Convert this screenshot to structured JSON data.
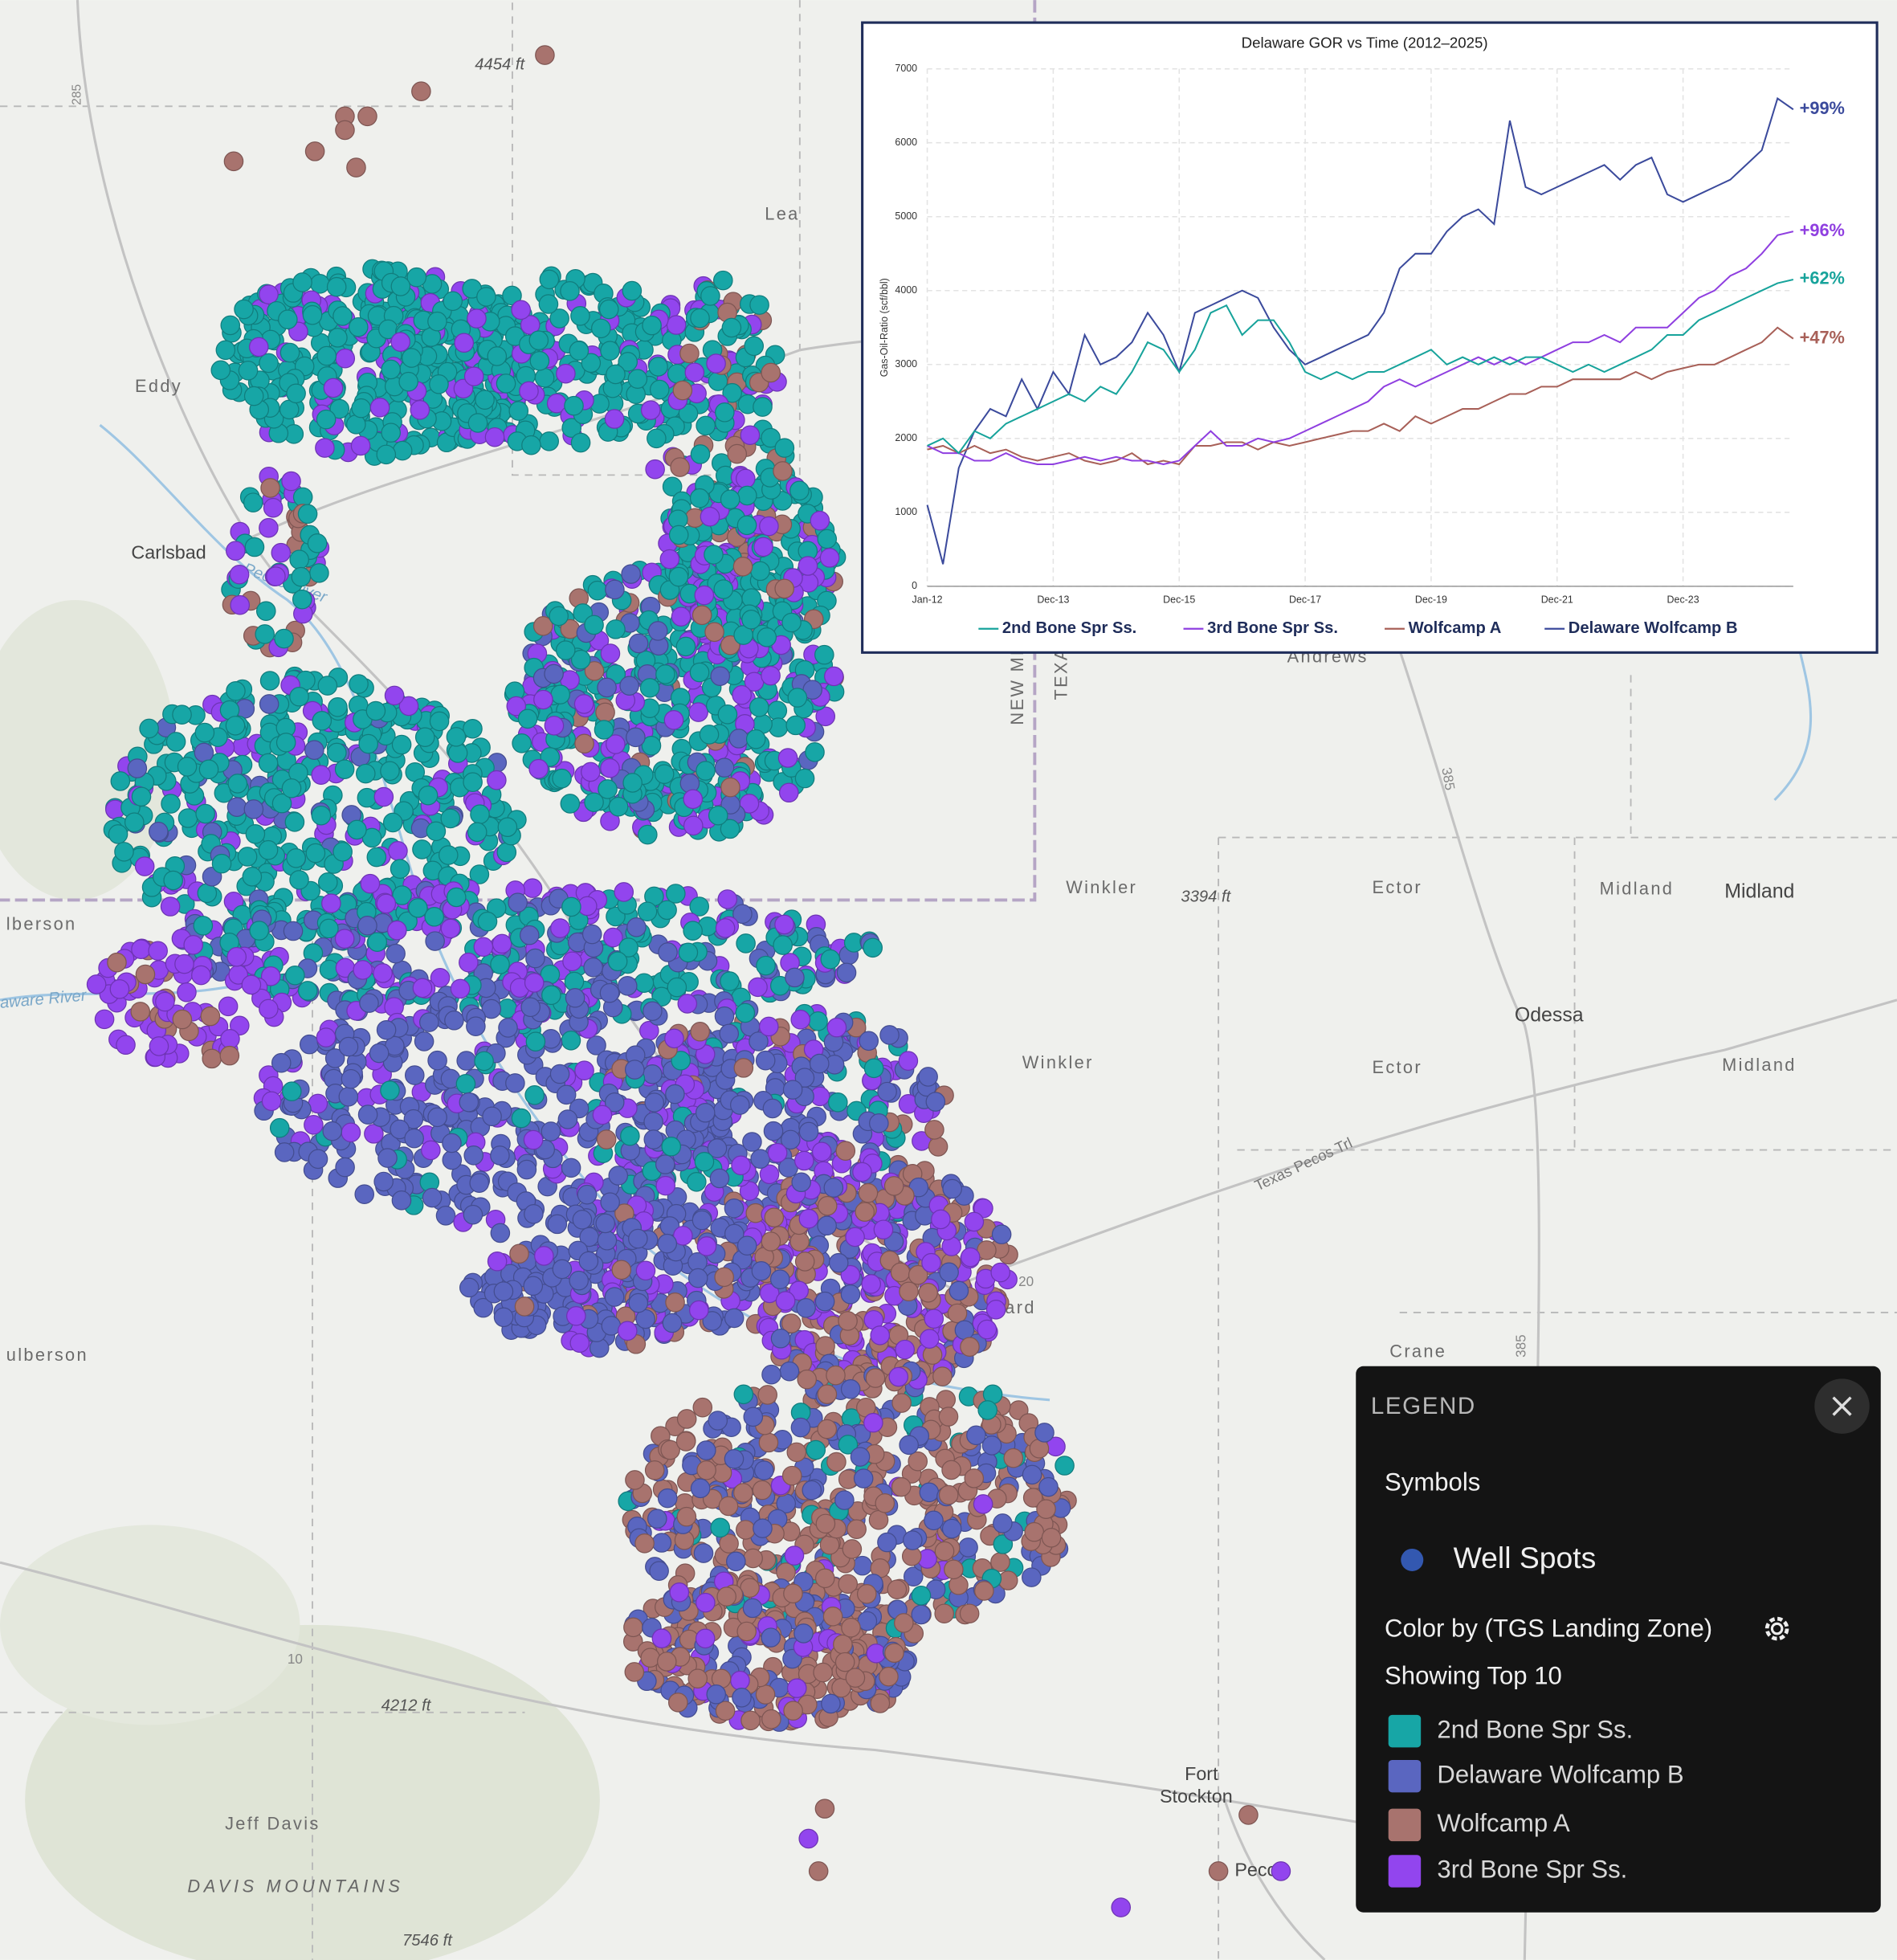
{
  "chart_data": {
    "type": "line",
    "title": "Delaware GOR vs Time (2012–2025)",
    "y_label": "Gas-Oil-Ratio (scf/bbl)",
    "x": [
      "Jan-12",
      "Mar-12",
      "Jun-12",
      "Sep-12",
      "Dec-12",
      "Mar-13",
      "Jun-13",
      "Sep-13",
      "Dec-13",
      "Mar-14",
      "Jun-14",
      "Sep-14",
      "Dec-14",
      "Mar-15",
      "Jun-15",
      "Sep-15",
      "Dec-15",
      "Mar-16",
      "Jun-16",
      "Sep-16",
      "Dec-16",
      "Mar-17",
      "Jun-17",
      "Sep-17",
      "Dec-17",
      "Mar-18",
      "Jun-18",
      "Sep-18",
      "Dec-18",
      "Mar-19",
      "Jun-19",
      "Sep-19",
      "Dec-19",
      "Mar-20",
      "Jun-20",
      "Sep-20",
      "Dec-20",
      "Mar-21",
      "Jun-21",
      "Sep-21",
      "Dec-21",
      "Mar-22",
      "Jun-22",
      "Sep-22",
      "Dec-22",
      "Mar-23",
      "Jun-23",
      "Sep-23",
      "Dec-23",
      "Mar-24",
      "Jun-24",
      "Sep-24",
      "Dec-24",
      "Mar-25",
      "Jun-25",
      "Aug-25"
    ],
    "xticks": [
      "Jan-12",
      "Dec-13",
      "Dec-15",
      "Dec-17",
      "Dec-19",
      "Dec-21",
      "Dec-23"
    ],
    "ylim": [
      0,
      7000
    ],
    "yticks": [
      0,
      1000,
      2000,
      3000,
      4000,
      5000,
      6000,
      7000
    ],
    "grid": true,
    "series": [
      {
        "name": "2nd Bone Spr Ss.",
        "color": "#17a39b",
        "annotation": "+62%",
        "values": [
          1900,
          2000,
          1800,
          2100,
          2000,
          2200,
          2300,
          2400,
          2500,
          2600,
          2500,
          2700,
          2600,
          2900,
          3300,
          3200,
          2900,
          3200,
          3700,
          3800,
          3400,
          3600,
          3600,
          3300,
          2900,
          2800,
          2900,
          2800,
          2900,
          2900,
          3000,
          3100,
          3200,
          3000,
          3100,
          3000,
          3100,
          3000,
          3100,
          3100,
          3000,
          2900,
          3000,
          2900,
          3000,
          3100,
          3200,
          3400,
          3400,
          3600,
          3700,
          3800,
          3900,
          4000,
          4100,
          4150
        ]
      },
      {
        "name": "3rd Bone Spr Ss.",
        "color": "#8f3fe0",
        "annotation": "+96%",
        "values": [
          1900,
          1800,
          1800,
          1700,
          1700,
          1800,
          1700,
          1650,
          1650,
          1700,
          1750,
          1700,
          1750,
          1700,
          1700,
          1650,
          1700,
          1900,
          2100,
          1900,
          1900,
          2000,
          1950,
          2000,
          2100,
          2200,
          2300,
          2400,
          2500,
          2700,
          2800,
          2700,
          2800,
          2900,
          3000,
          3100,
          3000,
          3100,
          3000,
          3100,
          3200,
          3300,
          3300,
          3400,
          3300,
          3500,
          3500,
          3500,
          3700,
          3900,
          4000,
          4200,
          4300,
          4500,
          4750,
          4800
        ]
      },
      {
        "name": "Wolfcamp A",
        "color": "#a86058",
        "annotation": "+47%",
        "values": [
          1850,
          1900,
          1800,
          1900,
          1800,
          1850,
          1750,
          1700,
          1750,
          1800,
          1700,
          1650,
          1700,
          1800,
          1650,
          1700,
          1650,
          1900,
          1900,
          1950,
          1950,
          1850,
          1950,
          1900,
          1950,
          2000,
          2050,
          2100,
          2100,
          2200,
          2100,
          2300,
          2200,
          2300,
          2400,
          2400,
          2500,
          2600,
          2600,
          2700,
          2700,
          2800,
          2800,
          2800,
          2800,
          2900,
          2800,
          2900,
          2950,
          3000,
          3000,
          3100,
          3200,
          3300,
          3500,
          3350
        ]
      },
      {
        "name": "Delaware Wolfcamp B",
        "color": "#3b4a9c",
        "annotation": "+99%",
        "values": [
          1100,
          300,
          1600,
          2100,
          2400,
          2300,
          2800,
          2400,
          2900,
          2600,
          3400,
          3000,
          3100,
          3300,
          3700,
          3400,
          2900,
          3700,
          3800,
          3900,
          4000,
          3900,
          3500,
          3200,
          3000,
          3100,
          3200,
          3300,
          3400,
          3700,
          4300,
          4500,
          4500,
          4800,
          5000,
          5100,
          4900,
          6300,
          5400,
          5300,
          5400,
          5500,
          5600,
          5700,
          5500,
          5700,
          5800,
          5300,
          5200,
          5300,
          5400,
          5500,
          5700,
          5900,
          6600,
          6450
        ]
      }
    ]
  },
  "map": {
    "labels": [
      "4454 ft",
      "Lea",
      "Eddy",
      "Carlsbad",
      "NEW MEXICO",
      "TEXAS",
      "Andrews",
      "Winkler",
      "3394 ft",
      "Ector",
      "Midland",
      "Midland",
      "Odessa",
      "Winkler",
      "Ector",
      "Midland",
      "Texas Pecos Trl",
      "Ward",
      "Crane",
      "lberson",
      "ulberson",
      "4212 ft",
      "Jeff Davis",
      "DAVIS MOUNTAINS",
      "7546 ft",
      "Fort",
      "Stockton",
      "Pecos",
      "Pecos River",
      "aware River",
      "285",
      "385",
      "20",
      "10",
      "385"
    ]
  },
  "legend": {
    "title": "LEGEND",
    "symbols": "Symbols",
    "symbol": "Well Spots",
    "color_by": "Color by (TGS Landing Zone)",
    "showing": "Showing Top 10",
    "items": [
      {
        "name": "2nd Bone Spr Ss.",
        "color": "#17a6a6"
      },
      {
        "name": "Delaware Wolfcamp B",
        "color": "#5a66c0"
      },
      {
        "name": "Wolfcamp A",
        "color": "#a8736e"
      },
      {
        "name": "3rd Bone Spr Ss.",
        "color": "#9245ee"
      }
    ]
  }
}
